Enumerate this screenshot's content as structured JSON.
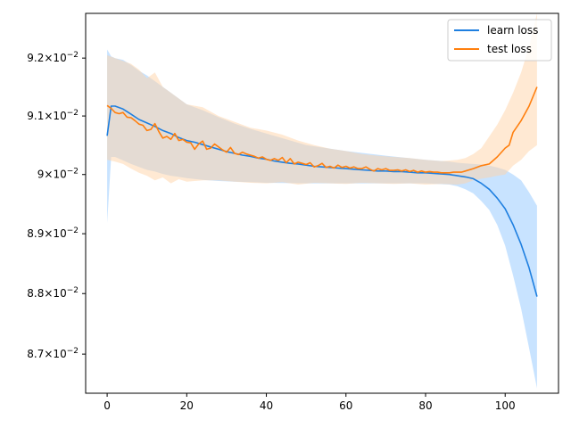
{
  "chart_data": {
    "type": "line",
    "title": "",
    "xlabel": "",
    "ylabel": "",
    "xlim": [
      -5.4,
      113.4
    ],
    "ylim": [
      0.08636,
      0.09278
    ],
    "y_scale": "log",
    "grid": false,
    "legend_position": "top-right",
    "x_ticks": [
      0,
      20,
      40,
      60,
      80,
      100
    ],
    "x_tick_labels": [
      "0",
      "20",
      "40",
      "60",
      "80",
      "100"
    ],
    "y_ticks": [
      0.087,
      0.088,
      0.089,
      0.09,
      0.091,
      0.092
    ],
    "y_tick_labels": [
      {
        "mantissa": "8.7",
        "base": "10",
        "exp": "−2"
      },
      {
        "mantissa": "8.8",
        "base": "10",
        "exp": "−2"
      },
      {
        "mantissa": "8.9",
        "base": "10",
        "exp": "−2"
      },
      {
        "mantissa": "9",
        "base": "10",
        "exp": "−2"
      },
      {
        "mantissa": "9.1",
        "base": "10",
        "exp": "−2"
      },
      {
        "mantissa": "9.2",
        "base": "10",
        "exp": "−2"
      }
    ],
    "series": [
      {
        "name": "learn loss",
        "color": "#1f77b4",
        "line_color": "#1e7fe0",
        "band_color": "#aad4ff",
        "points": [
          [
            0,
            0.09066
          ],
          [
            1,
            0.09117
          ],
          [
            2,
            0.09117
          ],
          [
            4,
            0.09112
          ],
          [
            6,
            0.09103
          ],
          [
            8,
            0.09094
          ],
          [
            10,
            0.09088
          ],
          [
            12,
            0.09082
          ],
          [
            14,
            0.09075
          ],
          [
            16,
            0.0907
          ],
          [
            18,
            0.09063
          ],
          [
            20,
            0.09058
          ],
          [
            22,
            0.09055
          ],
          [
            24,
            0.09051
          ],
          [
            26,
            0.09047
          ],
          [
            28,
            0.09043
          ],
          [
            30,
            0.09039
          ],
          [
            32,
            0.09036
          ],
          [
            34,
            0.09033
          ],
          [
            36,
            0.09031
          ],
          [
            38,
            0.09028
          ],
          [
            40,
            0.09026
          ],
          [
            42,
            0.09023
          ],
          [
            44,
            0.09021
          ],
          [
            46,
            0.09019
          ],
          [
            48,
            0.09018
          ],
          [
            50,
            0.09016
          ],
          [
            52,
            0.09014
          ],
          [
            54,
            0.09013
          ],
          [
            56,
            0.09012
          ],
          [
            58,
            0.09011
          ],
          [
            60,
            0.0901
          ],
          [
            62,
            0.09009
          ],
          [
            64,
            0.09008
          ],
          [
            66,
            0.09007
          ],
          [
            68,
            0.09006
          ],
          [
            70,
            0.09006
          ],
          [
            72,
            0.09005
          ],
          [
            74,
            0.09005
          ],
          [
            76,
            0.09004
          ],
          [
            78,
            0.09003
          ],
          [
            80,
            0.09003
          ],
          [
            82,
            0.09002
          ],
          [
            84,
            0.09001
          ],
          [
            86,
            0.09
          ],
          [
            88,
            0.08998
          ],
          [
            90,
            0.08996
          ],
          [
            92,
            0.08993
          ],
          [
            94,
            0.08985
          ],
          [
            96,
            0.08975
          ],
          [
            98,
            0.0896
          ],
          [
            100,
            0.08942
          ],
          [
            102,
            0.08915
          ],
          [
            104,
            0.08882
          ],
          [
            106,
            0.08843
          ],
          [
            108,
            0.08795
          ]
        ],
        "band_low": [
          [
            0,
            0.08918
          ],
          [
            1,
            0.0903
          ],
          [
            2,
            0.0903
          ],
          [
            4,
            0.09024
          ],
          [
            6,
            0.09018
          ],
          [
            8,
            0.09013
          ],
          [
            10,
            0.09008
          ],
          [
            12,
            0.09005
          ],
          [
            14,
            0.09001
          ],
          [
            16,
            0.08998
          ],
          [
            18,
            0.08996
          ],
          [
            20,
            0.08994
          ],
          [
            24,
            0.08991
          ],
          [
            28,
            0.08989
          ],
          [
            32,
            0.08988
          ],
          [
            36,
            0.08987
          ],
          [
            40,
            0.08986
          ],
          [
            50,
            0.08985
          ],
          [
            60,
            0.08985
          ],
          [
            70,
            0.08985
          ],
          [
            80,
            0.08985
          ],
          [
            86,
            0.08983
          ],
          [
            88,
            0.0898
          ],
          [
            90,
            0.08975
          ],
          [
            92,
            0.08968
          ],
          [
            94,
            0.08955
          ],
          [
            96,
            0.0894
          ],
          [
            98,
            0.08915
          ],
          [
            100,
            0.0888
          ],
          [
            102,
            0.0883
          ],
          [
            104,
            0.08775
          ],
          [
            106,
            0.0871
          ],
          [
            108,
            0.08644
          ]
        ],
        "band_high": [
          [
            0,
            0.09215
          ],
          [
            1,
            0.09203
          ],
          [
            2,
            0.092
          ],
          [
            4,
            0.09197
          ],
          [
            6,
            0.09188
          ],
          [
            8,
            0.09178
          ],
          [
            10,
            0.0917
          ],
          [
            12,
            0.0916
          ],
          [
            14,
            0.0915
          ],
          [
            16,
            0.0914
          ],
          [
            18,
            0.0913
          ],
          [
            20,
            0.0912
          ],
          [
            24,
            0.0911
          ],
          [
            28,
            0.09098
          ],
          [
            32,
            0.09087
          ],
          [
            36,
            0.09078
          ],
          [
            40,
            0.0907
          ],
          [
            50,
            0.0905
          ],
          [
            60,
            0.0904
          ],
          [
            70,
            0.09032
          ],
          [
            80,
            0.09025
          ],
          [
            86,
            0.09022
          ],
          [
            88,
            0.0902
          ],
          [
            90,
            0.09019
          ],
          [
            92,
            0.09018
          ],
          [
            94,
            0.09017
          ],
          [
            96,
            0.09015
          ],
          [
            98,
            0.09012
          ],
          [
            100,
            0.09008
          ],
          [
            102,
            0.09
          ],
          [
            104,
            0.0899
          ],
          [
            106,
            0.0897
          ],
          [
            108,
            0.08947
          ]
        ]
      },
      {
        "name": "test loss",
        "color": "#ff7f0e",
        "line_color": "#ff7f0e",
        "band_color": "#ffd4a8",
        "points": [
          [
            0,
            0.09118
          ],
          [
            1,
            0.09113
          ],
          [
            2,
            0.09106
          ],
          [
            3,
            0.09104
          ],
          [
            4,
            0.09106
          ],
          [
            5,
            0.09098
          ],
          [
            6,
            0.09097
          ],
          [
            7,
            0.09092
          ],
          [
            8,
            0.09086
          ],
          [
            9,
            0.09084
          ],
          [
            10,
            0.09075
          ],
          [
            11,
            0.09077
          ],
          [
            12,
            0.09087
          ],
          [
            13,
            0.09073
          ],
          [
            14,
            0.09062
          ],
          [
            15,
            0.09065
          ],
          [
            16,
            0.0906
          ],
          [
            17,
            0.0907
          ],
          [
            18,
            0.09058
          ],
          [
            19,
            0.0906
          ],
          [
            20,
            0.09055
          ],
          [
            21,
            0.09054
          ],
          [
            22,
            0.09043
          ],
          [
            23,
            0.09052
          ],
          [
            24,
            0.09057
          ],
          [
            25,
            0.09043
          ],
          [
            26,
            0.09045
          ],
          [
            27,
            0.09052
          ],
          [
            28,
            0.09047
          ],
          [
            29,
            0.09042
          ],
          [
            30,
            0.09038
          ],
          [
            31,
            0.09046
          ],
          [
            32,
            0.09036
          ],
          [
            33,
            0.09034
          ],
          [
            34,
            0.09038
          ],
          [
            35,
            0.09035
          ],
          [
            36,
            0.09033
          ],
          [
            37,
            0.09031
          ],
          [
            38,
            0.09028
          ],
          [
            39,
            0.0903
          ],
          [
            40,
            0.09026
          ],
          [
            41,
            0.09024
          ],
          [
            42,
            0.09027
          ],
          [
            43,
            0.09024
          ],
          [
            44,
            0.09029
          ],
          [
            45,
            0.0902
          ],
          [
            46,
            0.09027
          ],
          [
            47,
            0.09018
          ],
          [
            48,
            0.09021
          ],
          [
            49,
            0.09019
          ],
          [
            50,
            0.09017
          ],
          [
            51,
            0.0902
          ],
          [
            52,
            0.09013
          ],
          [
            53,
            0.09015
          ],
          [
            54,
            0.09019
          ],
          [
            55,
            0.09012
          ],
          [
            56,
            0.09014
          ],
          [
            57,
            0.09011
          ],
          [
            58,
            0.09016
          ],
          [
            59,
            0.09012
          ],
          [
            60,
            0.09014
          ],
          [
            61,
            0.09011
          ],
          [
            62,
            0.09013
          ],
          [
            63,
            0.0901
          ],
          [
            64,
            0.0901
          ],
          [
            65,
            0.09013
          ],
          [
            66,
            0.09009
          ],
          [
            67,
            0.09006
          ],
          [
            68,
            0.0901
          ],
          [
            69,
            0.09008
          ],
          [
            70,
            0.0901
          ],
          [
            71,
            0.09007
          ],
          [
            72,
            0.09007
          ],
          [
            73,
            0.09008
          ],
          [
            74,
            0.09006
          ],
          [
            75,
            0.09008
          ],
          [
            76,
            0.09005
          ],
          [
            77,
            0.09007
          ],
          [
            78,
            0.09004
          ],
          [
            79,
            0.09006
          ],
          [
            80,
            0.09004
          ],
          [
            81,
            0.09005
          ],
          [
            82,
            0.09004
          ],
          [
            83,
            0.09004
          ],
          [
            84,
            0.09003
          ],
          [
            85,
            0.09003
          ],
          [
            86,
            0.09003
          ],
          [
            87,
            0.09004
          ],
          [
            88,
            0.09004
          ],
          [
            89,
            0.09004
          ],
          [
            90,
            0.09006
          ],
          [
            92,
            0.0901
          ],
          [
            94,
            0.09015
          ],
          [
            96,
            0.09018
          ],
          [
            98,
            0.0903
          ],
          [
            100,
            0.09045
          ],
          [
            101,
            0.0905
          ],
          [
            102,
            0.09072
          ],
          [
            104,
            0.09092
          ],
          [
            106,
            0.09117
          ],
          [
            108,
            0.0915
          ]
        ],
        "band_low": [
          [
            0,
            0.09025
          ],
          [
            2,
            0.09022
          ],
          [
            4,
            0.09018
          ],
          [
            6,
            0.0901
          ],
          [
            8,
            0.09003
          ],
          [
            10,
            0.08998
          ],
          [
            12,
            0.0899
          ],
          [
            14,
            0.08995
          ],
          [
            16,
            0.08985
          ],
          [
            18,
            0.08992
          ],
          [
            20,
            0.08988
          ],
          [
            24,
            0.0899
          ],
          [
            28,
            0.0899
          ],
          [
            32,
            0.08988
          ],
          [
            36,
            0.08986
          ],
          [
            40,
            0.08985
          ],
          [
            44,
            0.08987
          ],
          [
            48,
            0.08983
          ],
          [
            52,
            0.08986
          ],
          [
            56,
            0.08985
          ],
          [
            60,
            0.08984
          ],
          [
            64,
            0.08986
          ],
          [
            68,
            0.08985
          ],
          [
            72,
            0.08984
          ],
          [
            76,
            0.08985
          ],
          [
            80,
            0.08983
          ],
          [
            84,
            0.08984
          ],
          [
            88,
            0.08983
          ],
          [
            90,
            0.08985
          ],
          [
            92,
            0.0899
          ],
          [
            94,
            0.08993
          ],
          [
            96,
            0.08995
          ],
          [
            98,
            0.08998
          ],
          [
            100,
            0.09
          ],
          [
            102,
            0.09015
          ],
          [
            104,
            0.09025
          ],
          [
            106,
            0.0904
          ],
          [
            108,
            0.0905
          ]
        ],
        "band_high": [
          [
            0,
            0.09205
          ],
          [
            2,
            0.092
          ],
          [
            4,
            0.09195
          ],
          [
            6,
            0.0919
          ],
          [
            8,
            0.0918
          ],
          [
            10,
            0.09165
          ],
          [
            12,
            0.09175
          ],
          [
            14,
            0.0915
          ],
          [
            16,
            0.0914
          ],
          [
            18,
            0.0913
          ],
          [
            20,
            0.0912
          ],
          [
            24,
            0.09115
          ],
          [
            28,
            0.091
          ],
          [
            32,
            0.0909
          ],
          [
            36,
            0.0908
          ],
          [
            40,
            0.09075
          ],
          [
            44,
            0.09068
          ],
          [
            48,
            0.09058
          ],
          [
            52,
            0.0905
          ],
          [
            56,
            0.09044
          ],
          [
            60,
            0.0904
          ],
          [
            64,
            0.09035
          ],
          [
            68,
            0.09032
          ],
          [
            72,
            0.0903
          ],
          [
            76,
            0.09028
          ],
          [
            80,
            0.09025
          ],
          [
            84,
            0.09023
          ],
          [
            88,
            0.09025
          ],
          [
            90,
            0.09028
          ],
          [
            92,
            0.09035
          ],
          [
            94,
            0.09045
          ],
          [
            96,
            0.09065
          ],
          [
            98,
            0.09085
          ],
          [
            100,
            0.0911
          ],
          [
            102,
            0.0914
          ],
          [
            104,
            0.09175
          ],
          [
            106,
            0.0922
          ],
          [
            108,
            0.09278
          ]
        ]
      }
    ]
  }
}
